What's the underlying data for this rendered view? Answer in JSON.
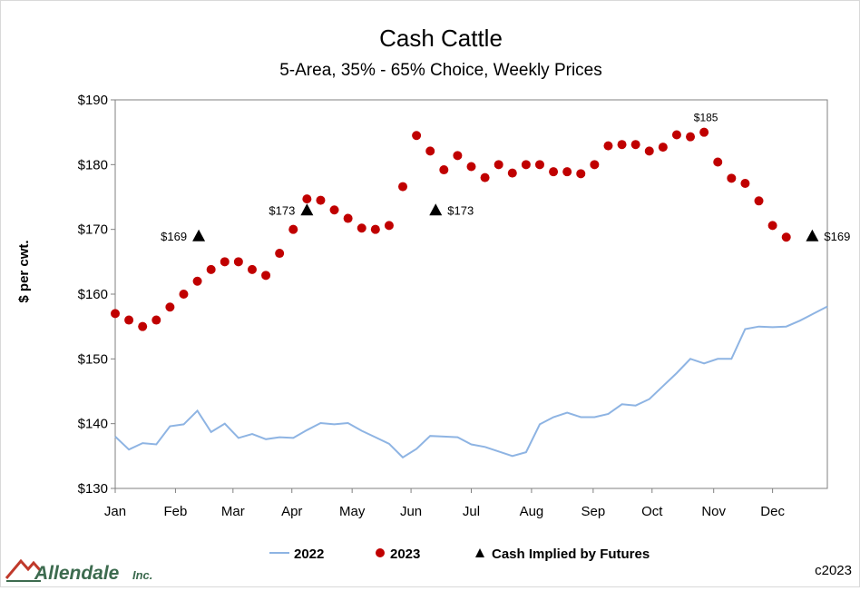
{
  "chart_data": {
    "type": "scatter",
    "title": "Cash Cattle",
    "subtitle": "5-Area, 35% - 65% Choice, Weekly Prices",
    "ylabel": "$ per cwt.",
    "xlabel": "",
    "ylim": [
      130,
      190
    ],
    "y_ticks": [
      130,
      140,
      150,
      160,
      170,
      180,
      190
    ],
    "y_tick_labels": [
      "$130",
      "$140",
      "$150",
      "$160",
      "$170",
      "$180",
      "$190"
    ],
    "x_domain": [
      0,
      52
    ],
    "x_tick_labels": [
      "Jan",
      "Feb",
      "Mar",
      "Apr",
      "May",
      "Jun",
      "Jul",
      "Aug",
      "Sep",
      "Oct",
      "Nov",
      "Dec"
    ],
    "x_tick_positions": [
      0,
      4.4,
      8.6,
      12.9,
      17.3,
      21.6,
      26.0,
      30.4,
      34.9,
      39.2,
      43.7,
      48.0
    ],
    "grid": false,
    "legend_position": "bottom",
    "series": [
      {
        "name": "2022",
        "kind": "line",
        "color": "#8eb4e3",
        "x": [
          0,
          1,
          2,
          3,
          4,
          5,
          6,
          7,
          8,
          9,
          10,
          11,
          12,
          13,
          14,
          15,
          16,
          17,
          18,
          19,
          20,
          21,
          22,
          23,
          24,
          25,
          26,
          27,
          28,
          29,
          30,
          31,
          32,
          33,
          34,
          35,
          36,
          37,
          38,
          39,
          40,
          41,
          42,
          43,
          44,
          45,
          46,
          47,
          48,
          49,
          50,
          51,
          52
        ],
        "values": [
          138.0,
          136.0,
          137.0,
          136.8,
          139.6,
          139.9,
          142.0,
          138.7,
          140.0,
          137.8,
          138.4,
          137.6,
          137.9,
          137.8,
          139.0,
          140.1,
          139.9,
          140.1,
          138.9,
          137.9,
          136.9,
          134.8,
          136.1,
          138.1,
          138.0,
          137.9,
          136.8,
          136.4,
          135.7,
          135.0,
          135.6,
          139.9,
          141.0,
          141.7,
          141.0,
          141.0,
          141.5,
          143.0,
          142.8,
          143.8,
          145.8,
          147.8,
          150.0,
          149.3,
          150.0,
          150.0,
          154.6,
          155.0,
          154.9,
          155.0,
          155.9,
          157.0,
          158.1
        ]
      },
      {
        "name": "2023",
        "kind": "points",
        "color": "#c00000",
        "x": [
          0,
          1,
          2,
          3,
          4,
          5,
          6,
          7,
          8,
          9,
          10,
          11,
          12,
          13,
          14,
          15,
          16,
          17,
          18,
          19,
          20,
          21,
          22,
          23,
          24,
          25,
          26,
          27,
          28,
          29,
          30,
          31,
          32,
          33,
          34,
          35,
          36,
          37,
          38,
          39,
          40,
          41,
          42,
          43,
          44,
          45,
          46,
          47,
          48,
          49,
          50
        ],
        "values": [
          157.0,
          156.0,
          155.0,
          156.0,
          158.0,
          160.0,
          162.0,
          163.8,
          165.0,
          165.0,
          163.8,
          162.9,
          166.3,
          170.0,
          174.7,
          174.5,
          173.0,
          171.7,
          170.2,
          170.0,
          170.6,
          176.6,
          184.5,
          182.1,
          179.2,
          181.4,
          179.7,
          178.0,
          180.0,
          178.7,
          180.0,
          180.0,
          178.9,
          178.9,
          178.6,
          180.0,
          182.9,
          183.1,
          183.1,
          182.1,
          182.7,
          184.6,
          184.3,
          185.0,
          180.4,
          177.9,
          177.1,
          174.4,
          170.6,
          168.8,
          null
        ]
      },
      {
        "name": "Cash Implied by Futures",
        "kind": "markers",
        "color": "#000000",
        "x": [
          6.1,
          14.0,
          23.4,
          50.9
        ],
        "values": [
          169,
          173,
          173,
          169
        ]
      }
    ],
    "annotations": [
      {
        "text": "$169",
        "x": 6.1,
        "y": 169,
        "anchor": "left"
      },
      {
        "text": "$173",
        "x": 14.0,
        "y": 173,
        "anchor": "left"
      },
      {
        "text": "$173",
        "x": 23.4,
        "y": 173,
        "anchor": "right"
      },
      {
        "text": "$169",
        "x": 50.9,
        "y": 169,
        "anchor": "right"
      },
      {
        "text": "$185",
        "x": 43.0,
        "y": 185,
        "anchor": "above"
      }
    ]
  },
  "footer": {
    "logo_text": "Allendale",
    "logo_suffix": "Inc.",
    "copyright": "c2023"
  },
  "colors": {
    "logo_red": "#c0392b",
    "logo_green": "#3d6b4f"
  }
}
